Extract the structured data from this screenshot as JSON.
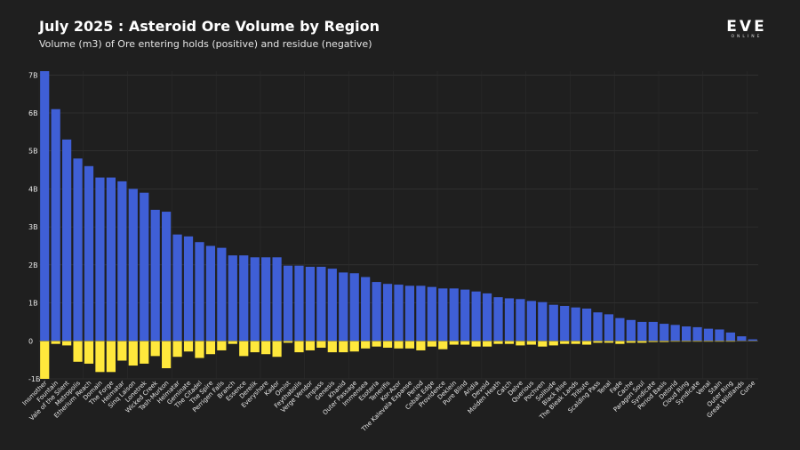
{
  "title": "July 2025 : Asteroid Ore Volume by Region",
  "subtitle": "Volume (m3) of Ore entering holds (positive) and residue (negative)",
  "logo": {
    "main": "EVE",
    "sub": "ONLINE"
  },
  "colors": {
    "background": "#1f1f1f",
    "positive": "#3f5fd6",
    "negative": "#ffe83c",
    "grid": "#3a3a3a"
  },
  "chart_data": {
    "type": "bar",
    "stacked": true,
    "grid": true,
    "ylim": [
      -1,
      7.1
    ],
    "yticks": [
      {
        "value": 7,
        "label": "7B"
      },
      {
        "value": 6,
        "label": "6B"
      },
      {
        "value": 5,
        "label": "5B"
      },
      {
        "value": 4,
        "label": "4B"
      },
      {
        "value": 3,
        "label": "3B"
      },
      {
        "value": 2,
        "label": "2B"
      },
      {
        "value": 1,
        "label": "1B"
      },
      {
        "value": 0,
        "label": "0"
      },
      {
        "value": -1,
        "label": "-1B"
      }
    ],
    "categories": [
      "Insmother",
      "Fountain",
      "Vale of the Silent",
      "Metropolis",
      "Etherium Reach",
      "Domain",
      "The Forge",
      "Heimatar",
      "Sinq Laison",
      "Lonetrek",
      "Wicked Creek",
      "Tash-Murkon",
      "Helmatar",
      "Geminate",
      "The Citadel",
      "The Spire",
      "Perrigen Falls",
      "Branch",
      "Essence",
      "Derelik",
      "Everyshore",
      "Kador",
      "Omist",
      "Feythabolis",
      "Verge Vendor",
      "Impass",
      "Genesis",
      "Khanid",
      "Outer Passage",
      "Immensea",
      "Esoteria",
      "Tenerifis",
      "Kor-Azor",
      "The Kalevala Expanse",
      "Period",
      "Cobalt Edge",
      "Providence",
      "Deklein",
      "Pure Blind",
      "Aridia",
      "Devoid",
      "Molden Heath",
      "Catch",
      "Delve",
      "Querious",
      "Pochven",
      "Solitude",
      "Black Rise",
      "The Bleak Lands",
      "Tribute",
      "Scalding Pass",
      "Tenal",
      "Fade",
      "Cache",
      "Paragon Soul",
      "Syndicate",
      "Period Basis",
      "Detorid",
      "Cloud Ring",
      "Syndicate",
      "Venal",
      "Stain",
      "Outer Ring",
      "Great Wildlands",
      "Curse"
    ],
    "series": [
      {
        "values": [
          7.1,
          6.1,
          5.3,
          4.8,
          4.6,
          4.3,
          4.3,
          4.2,
          4.0,
          3.9,
          3.45,
          3.4,
          2.8,
          2.75,
          2.6,
          2.5,
          2.45,
          2.25,
          2.25,
          2.2,
          2.2,
          2.2,
          1.98,
          1.98,
          1.95,
          1.95,
          1.9,
          1.8,
          1.78,
          1.68,
          1.55,
          1.5,
          1.48,
          1.45,
          1.45,
          1.42,
          1.38,
          1.38,
          1.35,
          1.3,
          1.25,
          1.15,
          1.12,
          1.1,
          1.05,
          1.02,
          0.95,
          0.92,
          0.88,
          0.85,
          0.75,
          0.7,
          0.6,
          0.55,
          0.5,
          0.5,
          0.45,
          0.42,
          0.38,
          0.36,
          0.32,
          0.3,
          0.22,
          0.12,
          0.04
        ]
      },
      {
        "values": [
          -1.0,
          -0.08,
          -0.12,
          -0.55,
          -0.6,
          -0.82,
          -0.82,
          -0.52,
          -0.65,
          -0.6,
          -0.4,
          -0.72,
          -0.42,
          -0.28,
          -0.45,
          -0.35,
          -0.25,
          -0.08,
          -0.4,
          -0.3,
          -0.35,
          -0.42,
          -0.05,
          -0.3,
          -0.25,
          -0.18,
          -0.3,
          -0.3,
          -0.28,
          -0.2,
          -0.15,
          -0.18,
          -0.2,
          -0.2,
          -0.25,
          -0.15,
          -0.22,
          -0.1,
          -0.1,
          -0.15,
          -0.15,
          -0.08,
          -0.08,
          -0.12,
          -0.1,
          -0.15,
          -0.12,
          -0.08,
          -0.08,
          -0.1,
          -0.05,
          -0.05,
          -0.08,
          -0.05,
          -0.05,
          -0.03,
          -0.03,
          -0.02,
          -0.02,
          -0.02,
          -0.02,
          -0.02,
          -0.02,
          -0.01,
          -0.01
        ]
      }
    ]
  }
}
